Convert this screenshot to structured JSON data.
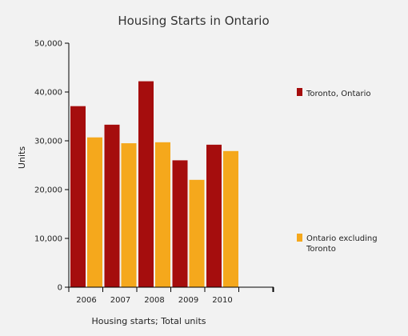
{
  "chart_data": {
    "type": "bar",
    "title": "Housing Starts in Ontario",
    "xlabel": "Housing starts; Total units",
    "ylabel": "Units",
    "categories": [
      "2006",
      "2007",
      "2008",
      "2009",
      "2010"
    ],
    "series": [
      {
        "name": "Toronto, Ontario",
        "color": "#a50d0d",
        "values": [
          37100,
          33300,
          42200,
          26000,
          29200
        ]
      },
      {
        "name": "Ontario excluding Toronto",
        "color": "#f5a81c",
        "values": [
          30700,
          29500,
          29700,
          22000,
          27900
        ]
      }
    ],
    "ylim": [
      0,
      50000
    ],
    "yticks": [
      0,
      10000,
      20000,
      30000,
      40000,
      50000
    ],
    "ytick_labels": [
      "0",
      "10,000",
      "20,000",
      "30,000",
      "40,000",
      "50,000"
    ],
    "grid": false,
    "legend_position": "right"
  }
}
